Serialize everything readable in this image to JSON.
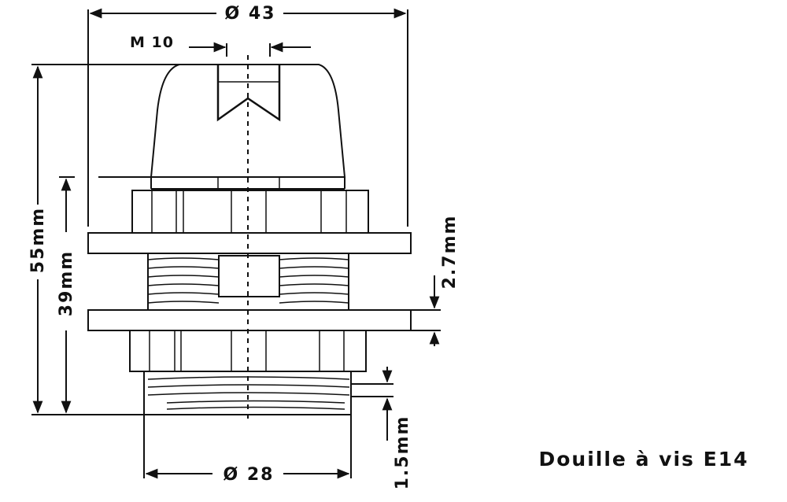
{
  "labels": {
    "top_diameter": "Ø 43",
    "thread_size": "M 10",
    "overall_height": "55mm",
    "thread_length": "39mm",
    "ring_thickness": "2.7mm",
    "base_step": "1.5mm",
    "bottom_diameter": "Ø 28",
    "caption": "Douille à vis E14"
  },
  "colors": {
    "ink": "#111111",
    "background": "#ffffff"
  }
}
